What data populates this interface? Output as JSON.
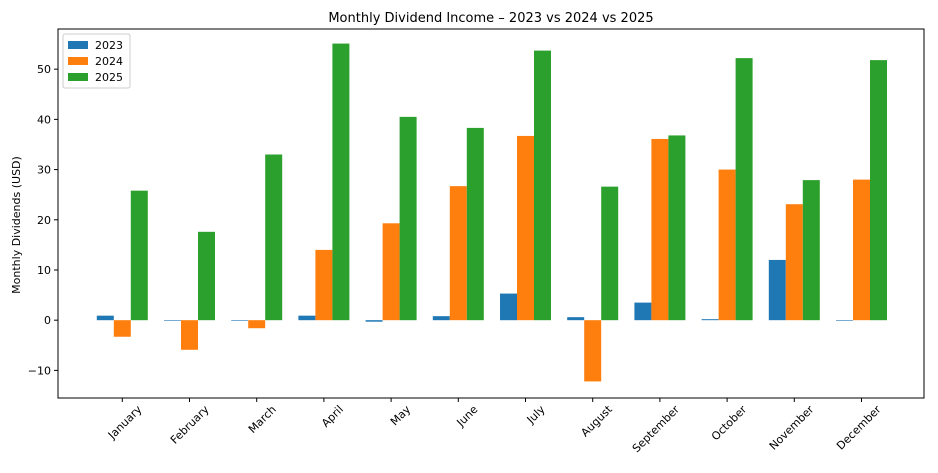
{
  "chart_data": {
    "type": "bar",
    "title": "Monthly Dividend Income – 2023 vs 2024 vs 2025",
    "xlabel": "",
    "ylabel": "Monthly Dividends (USD)",
    "ylim": [
      -15.5,
      58
    ],
    "yticks": [
      -10,
      0,
      10,
      20,
      30,
      40,
      50
    ],
    "grid": false,
    "legend_position": "top-left",
    "categories": [
      "January",
      "February",
      "March",
      "April",
      "May",
      "June",
      "July",
      "August",
      "September",
      "October",
      "November",
      "December"
    ],
    "series": [
      {
        "name": "2023",
        "color": "#1f77b4",
        "values": [
          0.9,
          -0.1,
          0.0,
          0.9,
          -0.3,
          0.8,
          5.3,
          0.6,
          3.5,
          0.2,
          12.0,
          0.0
        ]
      },
      {
        "name": "2024",
        "color": "#ff7f0e",
        "values": [
          -3.3,
          -5.9,
          -1.6,
          14.0,
          19.3,
          26.7,
          36.7,
          -12.2,
          36.1,
          30.0,
          23.1,
          28.0
        ]
      },
      {
        "name": "2025",
        "color": "#2ca02c",
        "values": [
          25.8,
          17.6,
          33.0,
          55.1,
          40.5,
          38.3,
          53.7,
          26.6,
          36.8,
          52.2,
          27.9,
          51.8
        ]
      }
    ]
  }
}
